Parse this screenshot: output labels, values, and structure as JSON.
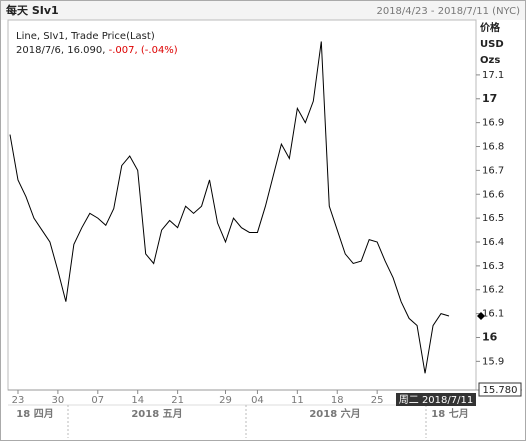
{
  "header": {
    "title": "每天 SIv1",
    "range": "2018/4/23 - 2018/7/11 (NYC)"
  },
  "legend": {
    "title": "Line, SIv1, Trade Price(Last)",
    "date_value": "2018/7/6, 16.090,",
    "change": "-.007,",
    "pct": "(-.04%)"
  },
  "chart_data": {
    "type": "line",
    "y_axis_label": [
      "价格",
      "USD",
      "Ozs"
    ],
    "categories": [
      null,
      "23",
      null,
      null,
      null,
      null,
      "30",
      null,
      null,
      null,
      null,
      "07",
      null,
      null,
      null,
      null,
      "14",
      null,
      null,
      null,
      null,
      "21",
      null,
      null,
      null,
      null,
      null,
      "29",
      null,
      null,
      null,
      "04",
      null,
      null,
      null,
      null,
      "11",
      null,
      null,
      null,
      null,
      "18",
      null,
      null,
      null,
      null,
      "25",
      null,
      null,
      null,
      null,
      null,
      null,
      null,
      null,
      null
    ],
    "period_labels": [
      "18 四月",
      "2018 五月",
      "2018 六月",
      "18 七月"
    ],
    "series": [
      {
        "name": "SIv1",
        "color": "#000000",
        "values": [
          16.85,
          16.66,
          16.59,
          16.5,
          16.45,
          16.4,
          16.28,
          16.15,
          16.39,
          16.46,
          16.52,
          16.5,
          16.47,
          16.54,
          16.72,
          16.76,
          16.7,
          16.35,
          16.31,
          16.45,
          16.49,
          16.46,
          16.55,
          16.52,
          16.55,
          16.66,
          16.48,
          16.4,
          16.5,
          16.46,
          16.44,
          16.44,
          16.55,
          16.68,
          16.81,
          16.75,
          16.96,
          16.9,
          16.99,
          17.24,
          16.55,
          16.45,
          16.35,
          16.31,
          16.32,
          16.41,
          16.4,
          16.32,
          16.25,
          16.15,
          16.08,
          16.05,
          15.85,
          16.05,
          16.1,
          16.09
        ]
      }
    ],
    "ylim": [
      15.78,
      17.33
    ],
    "yticks": [
      15.9,
      16,
      16.1,
      16.2,
      16.3,
      16.4,
      16.5,
      16.6,
      16.7,
      16.8,
      16.9,
      17,
      17.1
    ],
    "cursor_value": {
      "value": 15.78,
      "label": "15.780"
    },
    "cursor_date": "周二 2018/7/11"
  }
}
